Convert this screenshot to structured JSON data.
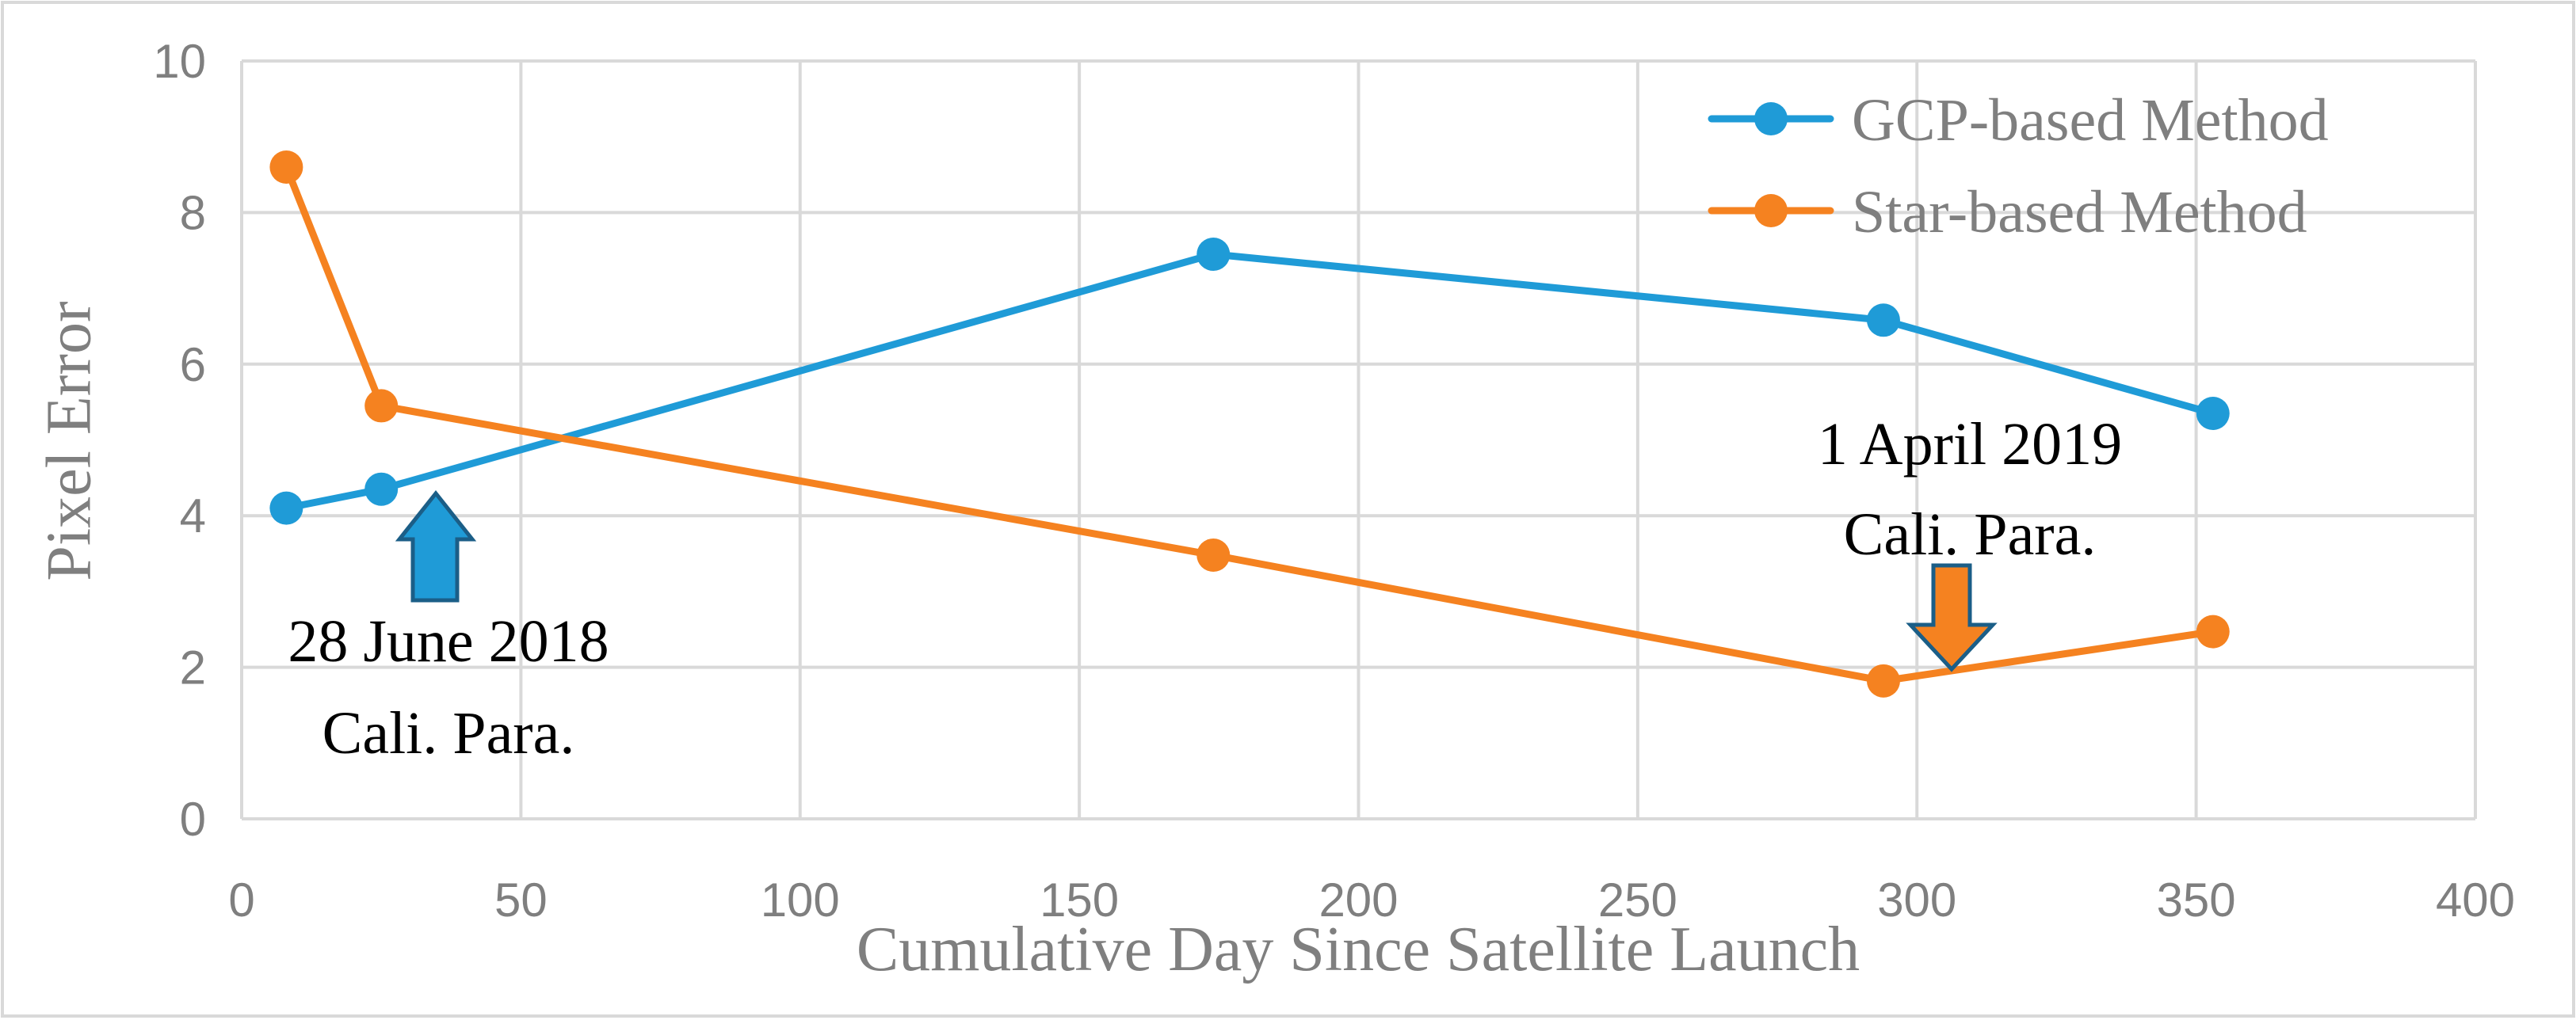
{
  "chart_data": {
    "type": "line",
    "title": "",
    "xlabel": "Cumulative Day Since Satellite Launch",
    "ylabel": "Pixel Error",
    "xlim": [
      0,
      400
    ],
    "ylim": [
      0,
      10
    ],
    "x_ticks": [
      0,
      50,
      100,
      150,
      200,
      250,
      300,
      350,
      400
    ],
    "y_ticks": [
      0,
      2,
      4,
      6,
      8,
      10
    ],
    "grid": true,
    "legend_position": "top-right",
    "series": [
      {
        "name": "GCP-based Method",
        "color": "#1F9BD7",
        "x": [
          8,
          25,
          174,
          294,
          353
        ],
        "y": [
          4.1,
          4.35,
          7.45,
          6.58,
          5.35
        ]
      },
      {
        "name": "Star-based Method",
        "color": "#F58220",
        "x": [
          8,
          25,
          174,
          294,
          353
        ],
        "y": [
          8.6,
          5.45,
          3.48,
          1.82,
          2.47
        ]
      }
    ],
    "annotations": [
      {
        "lines": [
          "28 June 2018",
          "Cali. Para."
        ],
        "color": "#1F9BD7"
      },
      {
        "lines": [
          "1 April 2019",
          "Cali. Para."
        ],
        "color": "#F58220"
      }
    ],
    "colors": {
      "grid": "#D9D9D9",
      "arrow_outline": "#1B5E87",
      "frame": "#D9D9D9"
    }
  }
}
